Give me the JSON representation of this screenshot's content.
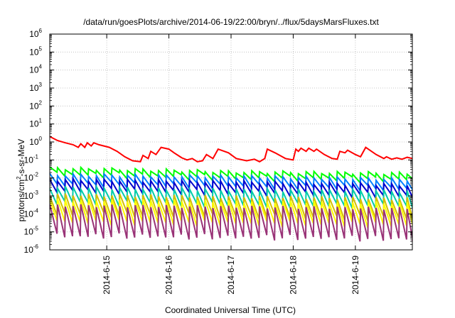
{
  "chart_data": {
    "type": "line",
    "title": "/data/run/goesPlots/archive/2014-06-19/22:00/bryn/../flux/5daysMarsFluxes.txt",
    "xlabel": "Coordinated Universal Time (UTC)",
    "ylabel": "protons/cm2-s-sr-MeV",
    "ylabel_parts": {
      "before": "protons/cm",
      "sup": "2",
      "after": "-s-sr-MeV"
    },
    "yscale": "log",
    "ylim": [
      1e-06,
      1000000.0
    ],
    "y_ticks": [
      {
        "base": "10",
        "exp": "-6",
        "value": 1e-06
      },
      {
        "base": "10",
        "exp": "-5",
        "value": 1e-05
      },
      {
        "base": "10",
        "exp": "-4",
        "value": 0.0001
      },
      {
        "base": "10",
        "exp": "-3",
        "value": 0.001
      },
      {
        "base": "10",
        "exp": "-2",
        "value": 0.01
      },
      {
        "base": "10",
        "exp": "-1",
        "value": 0.1
      },
      {
        "base": "10",
        "exp": "0",
        "value": 1
      },
      {
        "base": "10",
        "exp": "1",
        "value": 10
      },
      {
        "base": "10",
        "exp": "2",
        "value": 100
      },
      {
        "base": "10",
        "exp": "3",
        "value": 1000
      },
      {
        "base": "10",
        "exp": "4",
        "value": 10000
      },
      {
        "base": "10",
        "exp": "5",
        "value": 100000
      },
      {
        "base": "10",
        "exp": "6",
        "value": 1000000
      }
    ],
    "xlim": [
      "2014-06-14 02:00",
      "2014-06-19 22:00"
    ],
    "x_ticks": [
      {
        "label": "2014-6-15",
        "value": "2014-06-15 00:00"
      },
      {
        "label": "2014-6-16",
        "value": "2014-06-16 00:00"
      },
      {
        "label": "2014-6-17",
        "value": "2014-06-17 00:00"
      },
      {
        "label": "2014-6-18",
        "value": "2014-06-18 00:00"
      },
      {
        "label": "2014-6-19",
        "value": "2014-06-19 00:00"
      }
    ],
    "grid": true,
    "legend": "none",
    "series": [
      {
        "color": "#ff0000",
        "points": [
          [
            "2014-06-14 02:00",
            2.0
          ],
          [
            "2014-06-14 05:00",
            1.2
          ],
          [
            "2014-06-14 08:00",
            0.9
          ],
          [
            "2014-06-14 11:00",
            0.7
          ],
          [
            "2014-06-14 13:00",
            0.5
          ],
          [
            "2014-06-14 14:00",
            0.8
          ],
          [
            "2014-06-14 15:30",
            0.5
          ],
          [
            "2014-06-14 16:30",
            0.9
          ],
          [
            "2014-06-14 18:00",
            0.6
          ],
          [
            "2014-06-14 19:00",
            0.9
          ],
          [
            "2014-06-14 21:00",
            0.7
          ],
          [
            "2014-06-15 01:00",
            0.5
          ],
          [
            "2014-06-15 04:00",
            0.3
          ],
          [
            "2014-06-15 07:00",
            0.15
          ],
          [
            "2014-06-15 10:00",
            0.09
          ],
          [
            "2014-06-15 13:00",
            0.08
          ],
          [
            "2014-06-15 14:00",
            0.18
          ],
          [
            "2014-06-15 16:00",
            0.12
          ],
          [
            "2014-06-15 17:00",
            0.3
          ],
          [
            "2014-06-15 19:00",
            0.2
          ],
          [
            "2014-06-15 21:00",
            0.5
          ],
          [
            "2014-06-16 00:00",
            0.4
          ],
          [
            "2014-06-16 02:00",
            0.25
          ],
          [
            "2014-06-16 05:00",
            0.13
          ],
          [
            "2014-06-16 07:00",
            0.1
          ],
          [
            "2014-06-16 09:00",
            0.12
          ],
          [
            "2014-06-16 11:00",
            0.08
          ],
          [
            "2014-06-16 13:00",
            0.09
          ],
          [
            "2014-06-16 14:30",
            0.2
          ],
          [
            "2014-06-16 17:00",
            0.12
          ],
          [
            "2014-06-16 19:00",
            0.4
          ],
          [
            "2014-06-16 23:00",
            0.25
          ],
          [
            "2014-06-17 02:00",
            0.12
          ],
          [
            "2014-06-17 06:00",
            0.09
          ],
          [
            "2014-06-17 09:00",
            0.11
          ],
          [
            "2014-06-17 11:00",
            0.08
          ],
          [
            "2014-06-17 13:00",
            0.12
          ],
          [
            "2014-06-17 14:00",
            0.4
          ],
          [
            "2014-06-17 17:00",
            0.25
          ],
          [
            "2014-06-17 21:00",
            0.12
          ],
          [
            "2014-06-18 00:00",
            0.1
          ],
          [
            "2014-06-18 01:00",
            0.4
          ],
          [
            "2014-06-18 02:00",
            0.3
          ],
          [
            "2014-06-18 03:00",
            0.45
          ],
          [
            "2014-06-18 05:00",
            0.3
          ],
          [
            "2014-06-18 06:00",
            0.45
          ],
          [
            "2014-06-18 08:00",
            0.3
          ],
          [
            "2014-06-18 09:00",
            0.4
          ],
          [
            "2014-06-18 12:00",
            0.2
          ],
          [
            "2014-06-18 15:00",
            0.12
          ],
          [
            "2014-06-18 17:00",
            0.11
          ],
          [
            "2014-06-18 18:00",
            0.3
          ],
          [
            "2014-06-18 20:00",
            0.25
          ],
          [
            "2014-06-18 21:00",
            0.35
          ],
          [
            "2014-06-19 00:00",
            0.2
          ],
          [
            "2014-06-19 02:00",
            0.15
          ],
          [
            "2014-06-19 04:00",
            0.5
          ],
          [
            "2014-06-19 08:00",
            0.2
          ],
          [
            "2014-06-19 11:00",
            0.12
          ],
          [
            "2014-06-19 12:00",
            0.15
          ],
          [
            "2014-06-19 14:00",
            0.11
          ],
          [
            "2014-06-19 16:00",
            0.13
          ],
          [
            "2014-06-19 18:00",
            0.11
          ],
          [
            "2014-06-19 20:00",
            0.14
          ],
          [
            "2014-06-19 22:00",
            0.12
          ]
        ]
      },
      {
        "color": "#00ff00",
        "sawtooth": {
          "period_hours": 3,
          "peak_start": 0.035,
          "peak_mid": 0.022,
          "peak_end": 0.018,
          "trough_ratio": 0.45
        }
      },
      {
        "color": "#0080ff",
        "sawtooth": {
          "period_hours": 3,
          "peak_start": 0.015,
          "peak_mid": 0.012,
          "peak_end": 0.008,
          "trough_ratio": 0.3
        }
      },
      {
        "color": "#0000cc",
        "sawtooth": {
          "period_hours": 3,
          "peak_start": 0.008,
          "peak_mid": 0.006,
          "peak_end": 0.004,
          "trough_ratio": 0.25
        }
      },
      {
        "color": "#00ccaa",
        "sawtooth": {
          "period_hours": 3,
          "peak_start": 0.003,
          "peak_mid": 0.0022,
          "peak_end": 0.0018,
          "trough_ratio": 0.15
        }
      },
      {
        "color": "#d4c000",
        "sawtooth": {
          "period_hours": 3,
          "peak_start": 0.0012,
          "peak_mid": 0.0009,
          "peak_end": 0.0007,
          "trough_ratio": 0.08
        }
      },
      {
        "color": "#ffff00",
        "sawtooth": {
          "period_hours": 3,
          "peak_start": 0.0006,
          "peak_mid": 0.0005,
          "peak_end": 0.0004,
          "trough_ratio": 0.06
        }
      },
      {
        "color": "#993377",
        "sawtooth": {
          "period_hours": 3,
          "peak_start": 0.0003,
          "peak_mid": 0.00025,
          "peak_end": 0.0002,
          "trough_ratio": 0.02
        }
      }
    ]
  }
}
